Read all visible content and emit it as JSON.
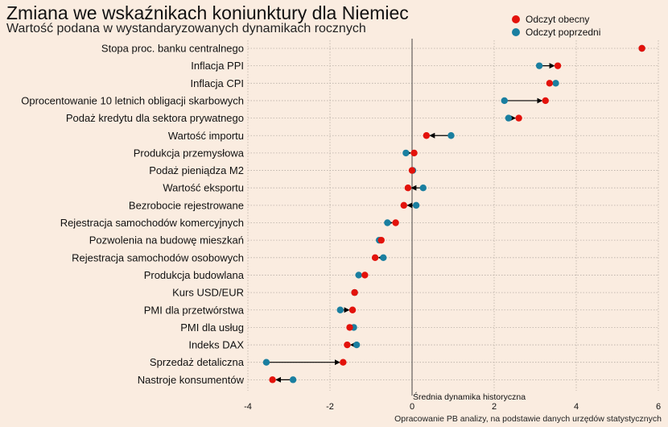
{
  "chart_data": {
    "type": "dot-arrow",
    "title": "Zmiana we wskaźnikach koniunktury dla Niemiec",
    "subtitle": "Wartość podana w wystandaryzowanych dynamikach rocznych",
    "legend": {
      "placement": "top-right",
      "items": [
        {
          "label": "Odczyt obecny",
          "color": "#e3120b"
        },
        {
          "label": "Odczyt poprzedni",
          "color": "#1a7fa0"
        }
      ]
    },
    "series": [
      {
        "name": "Odczyt obecny",
        "color": "#e3120b"
      },
      {
        "name": "Odczyt poprzedni",
        "color": "#1a7fa0"
      }
    ],
    "categories": [
      "Stopa proc. banku centralnego",
      "Inflacja PPI",
      "Inflacja CPI",
      "Oprocentowanie 10 letnich obligacji skarbowych",
      "Podaż kredytu dla sektora prywatnego",
      "Wartość importu",
      "Produkcja przemysłowa",
      "Podaż pieniądza M2",
      "Wartość eksportu",
      "Bezrobocie rejestrowane",
      "Rejestracja samochodów komercyjnych",
      "Pozwolenia na budowę mieszkań",
      "Rejestracja samochodów osobowych",
      "Produkcja budowlana",
      "Kurs USD/EUR",
      "PMI dla przetwórstwa",
      "PMI dla usług",
      "Indeks DAX",
      "Sprzedaż detaliczna",
      "Nastroje konsumentów"
    ],
    "current": [
      5.6,
      3.55,
      3.35,
      3.25,
      2.6,
      0.35,
      0.05,
      0.0,
      -0.1,
      -0.2,
      -0.4,
      -0.75,
      -0.9,
      -1.15,
      -1.4,
      -1.45,
      -1.52,
      -1.58,
      -1.68,
      -3.4
    ],
    "previous": [
      5.6,
      3.1,
      3.5,
      2.25,
      2.35,
      0.95,
      -0.15,
      0.02,
      0.27,
      0.1,
      -0.6,
      -0.8,
      -0.7,
      -1.3,
      -1.4,
      -1.75,
      -1.42,
      -1.35,
      -3.55,
      -2.9
    ],
    "xlim": [
      -4,
      6
    ],
    "xticks": [
      -4,
      -2,
      0,
      2,
      4,
      6
    ],
    "grid": true,
    "reference_line": {
      "x": 0,
      "label": "Średnia dynamika historyczna"
    }
  },
  "source": "Opracowanie PB analizy, na podstawie danych urzędów statystycznych"
}
